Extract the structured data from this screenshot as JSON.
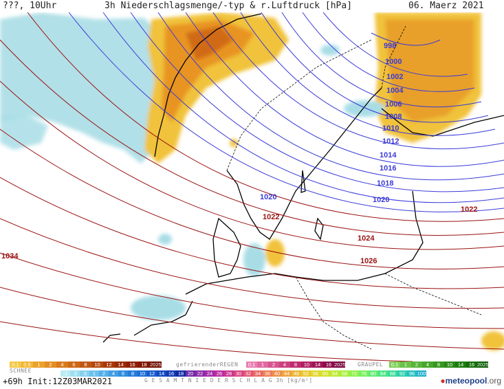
{
  "header": {
    "left": "???, 10Uhr",
    "title": "3h Niederschlagsmenge/-typ & r.Luftdruck [hPa]",
    "date": "06. Maerz 2021"
  },
  "isobars": [
    {
      "label": "998",
      "hpa": 998,
      "color": "#3a3ad8"
    },
    {
      "label": "1000",
      "hpa": 1000,
      "color": "#3a3ad8"
    },
    {
      "label": "1002",
      "hpa": 1002,
      "color": "#3a3ad8"
    },
    {
      "label": "1004",
      "hpa": 1004,
      "color": "#3a3ad8"
    },
    {
      "label": "1006",
      "hpa": 1006,
      "color": "#3a3ad8"
    },
    {
      "label": "1008",
      "hpa": 1008,
      "color": "#3a3ad8"
    },
    {
      "label": "1010",
      "hpa": 1010,
      "color": "#3a3ad8"
    },
    {
      "label": "1012",
      "hpa": 1012,
      "color": "#3a3ad8"
    },
    {
      "label": "1014",
      "hpa": 1014,
      "color": "#3a3ad8"
    },
    {
      "label": "1016",
      "hpa": 1016,
      "color": "#3a3ad8"
    },
    {
      "label": "1018",
      "hpa": 1018,
      "color": "#3a3ad8"
    },
    {
      "label": "1020",
      "hpa": 1020,
      "color": "#3a3ad8"
    },
    {
      "label": "1020",
      "hpa": 1020,
      "color": "#3a3ad8"
    },
    {
      "label": "1022",
      "hpa": 1022,
      "color": "#9a1010"
    },
    {
      "label": "1022",
      "hpa": 1022,
      "color": "#9a1010"
    },
    {
      "label": "1024",
      "hpa": 1024,
      "color": "#9a1010"
    },
    {
      "label": "1026",
      "hpa": 1026,
      "color": "#9a1010"
    },
    {
      "label": "1034",
      "hpa": 1034,
      "color": "#9a1010"
    }
  ],
  "legend": {
    "rain_values": [
      "0.1",
      "0.5",
      "1",
      "2",
      "4",
      "6",
      "8",
      "10",
      "12",
      "14",
      "16",
      "18",
      "2025+"
    ],
    "freezing_label": "gefrierenderREGEN",
    "freezing_values": [
      "0.1",
      "1",
      "2",
      "4",
      "8",
      "10",
      "14",
      "16",
      "2025+"
    ],
    "graupel_label": "GRAUPEL",
    "graupel_values": [
      "0.1",
      "1",
      "2",
      "4",
      "8",
      "10",
      "14",
      "16",
      "2025+"
    ],
    "snow_label": "SCHNEE",
    "snow_values": [
      ".1",
      ".2",
      ".5",
      "1",
      "2",
      "4",
      "6",
      "8",
      "10",
      "12",
      "14",
      "16",
      "18",
      "20",
      "22",
      "24",
      "26",
      "28",
      "30",
      "32",
      "34",
      "36",
      "40",
      "44",
      "48",
      "52",
      "56",
      "60",
      "64",
      "68",
      "72",
      "76",
      "80",
      "84",
      "88",
      "92",
      "96",
      "100"
    ],
    "total_label": "G E S A M T N I E D E R S C H L A G   3h  [kg/m²]",
    "colors": {
      "rain": [
        "#f5c842",
        "#f2b632",
        "#eba12a",
        "#e38e22",
        "#d97b1c",
        "#cc6816",
        "#c05812",
        "#b5480e",
        "#a8380a",
        "#9b2a07",
        "#8e1e05",
        "#801503",
        "#6f0d01"
      ],
      "freezing": [
        "#e87fb2",
        "#e06aa0",
        "#d65590",
        "#cc4080",
        "#bf2c70",
        "#b01e62",
        "#9f1456",
        "#8c0c4a",
        "#78063e"
      ],
      "graupel": [
        "#7fcf5a",
        "#6cc248",
        "#59b438",
        "#47a62b",
        "#36981f",
        "#288a16",
        "#1c7c0f",
        "#136e09",
        "#0b6005"
      ],
      "snow": [
        "#b9ecf2",
        "#9fdff0",
        "#85d0ee",
        "#6cc0ec",
        "#56afe8",
        "#429ee4",
        "#318de0",
        "#247cdb",
        "#1b6bd4",
        "#155acb",
        "#1249c0",
        "#1039b3",
        "#0f2aa5",
        "#6f2aa5",
        "#8b2aa8",
        "#a42aa8",
        "#bb2ca0",
        "#cc3592",
        "#d94482",
        "#e25472",
        "#e86863",
        "#ec7c55",
        "#ee904a",
        "#eea43f",
        "#edb636",
        "#e9c830",
        "#e1d72c",
        "#d3e22c",
        "#c0ea32",
        "#a9ef3d",
        "#8ff14c",
        "#76f05e",
        "#5fec71",
        "#4ae585",
        "#39db99",
        "#2ccfac",
        "#23c0bd",
        "#20aecd"
      ]
    }
  },
  "footer": {
    "init": "+69h  Init:12Z03MAR2021",
    "brand_main": "meteopool",
    "brand_tld": ".org"
  }
}
